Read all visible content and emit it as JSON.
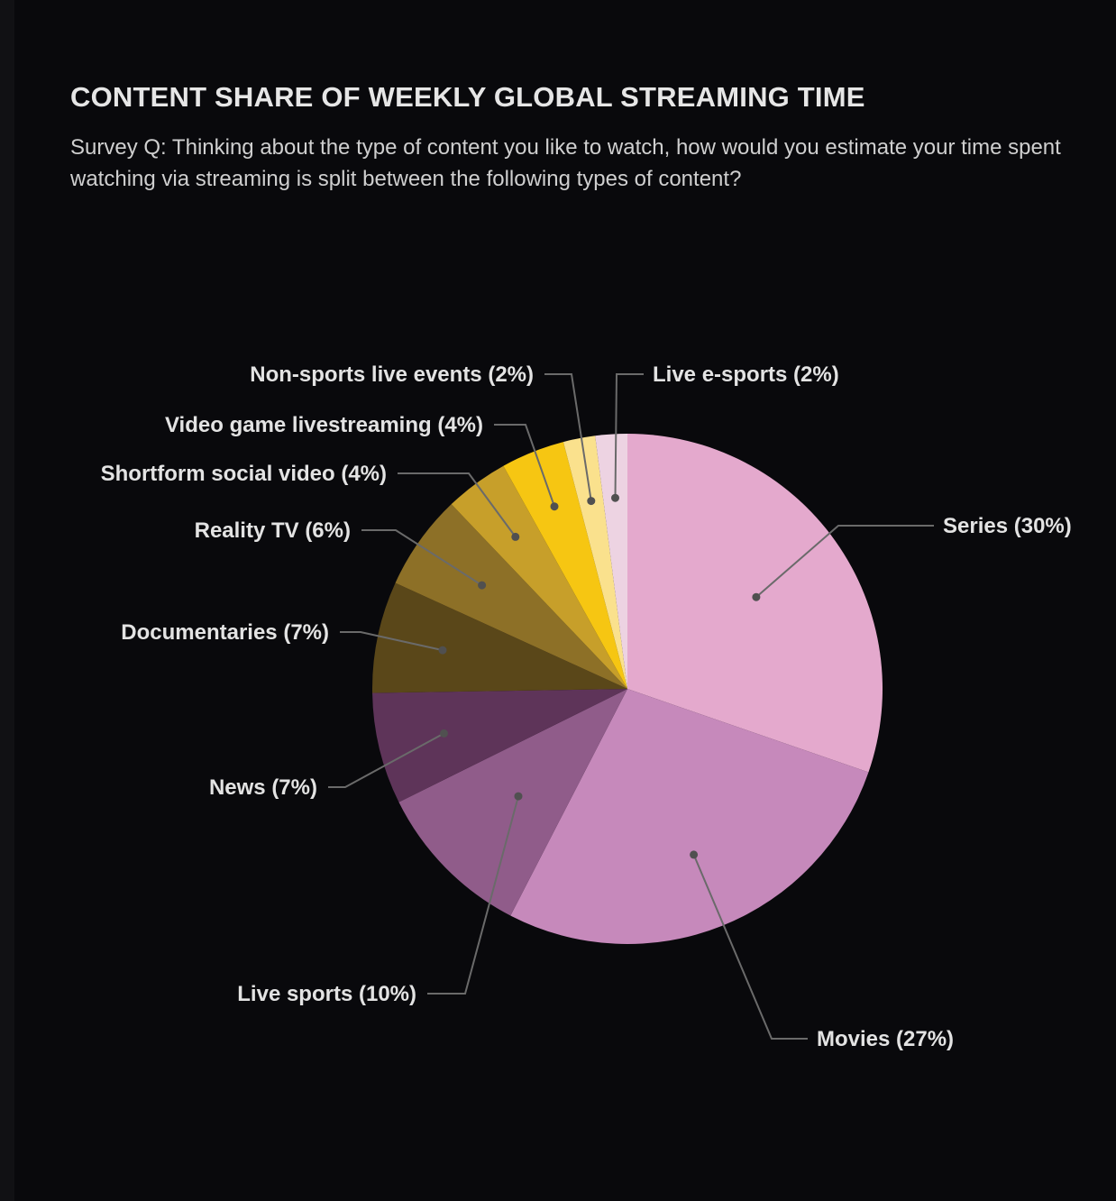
{
  "chart_data": {
    "type": "pie",
    "title": "CONTENT SHARE OF WEEKLY GLOBAL STREAMING TIME",
    "subtitle": "Survey Q: Thinking about the type of content you like to watch, how would you estimate your time spent watching via streaming is split between the following types of content?",
    "start_angle_deg": 0,
    "direction": "clockwise",
    "slices": [
      {
        "label": "Series (30%)",
        "category": "Series",
        "value": 30,
        "color": "#e4a9cd"
      },
      {
        "label": "Movies (27%)",
        "category": "Movies",
        "value": 27,
        "color": "#c689bb"
      },
      {
        "label": "Live sports (10%)",
        "category": "Live sports",
        "value": 10,
        "color": "#905c8a"
      },
      {
        "label": "News (7%)",
        "category": "News",
        "value": 7,
        "color": "#5e3459"
      },
      {
        "label": "Documentaries (7%)",
        "category": "Documentaries",
        "value": 7,
        "color": "#5a4719"
      },
      {
        "label": "Reality TV (6%)",
        "category": "Reality TV",
        "value": 6,
        "color": "#8d7027"
      },
      {
        "label": "Shortform social video (4%)",
        "category": "Shortform social video",
        "value": 4,
        "color": "#c79f2a"
      },
      {
        "label": "Video game livestreaming (4%)",
        "category": "Video game livestreaming",
        "value": 4,
        "color": "#f6c612"
      },
      {
        "label": "Non-sports live events (2%)",
        "category": "Non-sports live events",
        "value": 2,
        "color": "#fae18d"
      },
      {
        "label": "Live e-sports (2%)",
        "category": "Live e-sports",
        "value": 2,
        "color": "#edd3e2"
      }
    ]
  }
}
